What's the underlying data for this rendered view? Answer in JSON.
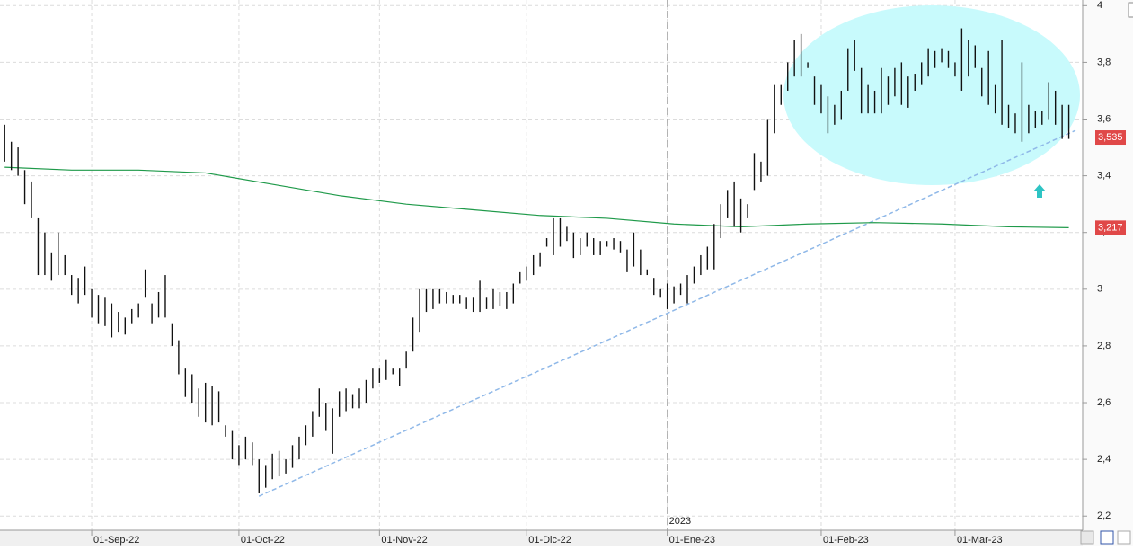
{
  "chart_data": {
    "type": "ohlc",
    "ylim": [
      2.15,
      4.02
    ],
    "yticks": [
      {
        "value": 2.2,
        "label": "2,2"
      },
      {
        "value": 2.4,
        "label": "2,4"
      },
      {
        "value": 2.6,
        "label": "2,6"
      },
      {
        "value": 2.8,
        "label": "2,8"
      },
      3,
      {
        "value": 3.2,
        "label": "3,2"
      },
      {
        "value": 3.4,
        "label": "3,4"
      },
      {
        "value": 3.6,
        "label": "3,6"
      },
      {
        "value": 3.8,
        "label": "3,8"
      },
      4
    ],
    "xlim": [
      -0.7,
      160.4
    ],
    "xticks": [
      {
        "value": 13,
        "label": "01-Sep-22"
      },
      {
        "value": 35,
        "label": "01-Oct-22"
      },
      {
        "value": 56,
        "label": "01-Nov-22"
      },
      {
        "value": 78,
        "label": "01-Dic-22"
      },
      {
        "value": 99,
        "label": "01-Ene-23"
      },
      {
        "value": 122,
        "label": "01-Feb-23"
      },
      {
        "value": 142,
        "label": "01-Mar-23"
      }
    ],
    "year_marker": {
      "value": 99,
      "label": "2023"
    },
    "grid": true,
    "color": "#111111",
    "low": [
      3.45,
      3.42,
      3.4,
      3.3,
      3.25,
      3.05,
      3.05,
      3.03,
      3.05,
      3.05,
      2.98,
      2.95,
      2.98,
      2.9,
      2.88,
      2.87,
      2.83,
      2.85,
      2.84,
      2.88,
      2.9,
      2.97,
      2.88,
      2.9,
      2.9,
      2.8,
      2.7,
      2.62,
      2.6,
      2.55,
      2.53,
      2.52,
      2.53,
      2.48,
      2.4,
      2.38,
      2.4,
      2.38,
      2.28,
      2.3,
      2.33,
      2.34,
      2.35,
      2.37,
      2.4,
      2.45,
      2.48,
      2.55,
      2.5,
      2.42,
      2.55,
      2.57,
      2.58,
      2.58,
      2.6,
      2.65,
      2.67,
      2.68,
      2.7,
      2.66,
      2.72,
      2.78,
      2.85,
      2.92,
      2.93,
      2.95,
      2.95,
      2.95,
      2.95,
      2.93,
      2.92,
      2.92,
      2.93,
      2.93,
      2.94,
      2.93,
      2.95,
      3.02,
      3.03,
      3.05,
      3.08,
      3.15,
      3.12,
      3.15,
      3.17,
      3.11,
      3.12,
      3.15,
      3.12,
      3.12,
      3.15,
      3.14,
      3.13,
      3.06,
      3.08,
      3.05,
      3.05,
      2.98,
      2.97,
      2.93,
      2.95,
      2.98,
      2.95,
      3.02,
      3.05,
      3.07,
      3.07,
      3.18,
      3.25,
      3.22,
      3.2,
      3.25,
      3.35,
      3.38,
      3.4,
      3.55,
      3.65,
      3.7,
      3.75,
      3.75,
      3.78,
      3.65,
      3.62,
      3.55,
      3.58,
      3.6,
      3.7,
      3.77,
      3.62,
      3.62,
      3.62,
      3.62,
      3.65,
      3.68,
      3.65,
      3.64,
      3.7,
      3.72,
      3.75,
      3.78,
      3.8,
      3.78,
      3.75,
      3.7,
      3.75,
      3.78,
      3.68,
      3.65,
      3.62,
      3.58,
      3.57,
      3.55,
      3.52,
      3.55,
      3.57,
      3.58,
      3.6,
      3.58,
      3.53,
      3.53
    ],
    "high": [
      3.58,
      3.52,
      3.5,
      3.42,
      3.38,
      3.25,
      3.2,
      3.13,
      3.2,
      3.12,
      3.05,
      3.04,
      3.08,
      3.0,
      2.98,
      2.97,
      2.95,
      2.92,
      2.9,
      2.93,
      2.95,
      3.07,
      2.95,
      2.99,
      3.05,
      2.88,
      2.82,
      2.72,
      2.7,
      2.65,
      2.67,
      2.66,
      2.64,
      2.52,
      2.5,
      2.45,
      2.48,
      2.46,
      2.4,
      2.38,
      2.42,
      2.43,
      2.4,
      2.45,
      2.48,
      2.52,
      2.57,
      2.65,
      2.6,
      2.58,
      2.64,
      2.65,
      2.63,
      2.65,
      2.68,
      2.72,
      2.72,
      2.75,
      2.72,
      2.72,
      2.78,
      2.9,
      3.0,
      3.0,
      3.0,
      3.0,
      2.99,
      2.98,
      2.98,
      2.97,
      2.97,
      3.03,
      2.97,
      3.0,
      2.99,
      2.99,
      3.02,
      3.06,
      3.08,
      3.12,
      3.13,
      3.18,
      3.25,
      3.25,
      3.22,
      3.2,
      3.18,
      3.2,
      3.18,
      3.17,
      3.17,
      3.18,
      3.17,
      3.14,
      3.2,
      3.14,
      3.07,
      3.04,
      3.0,
      3.02,
      3.01,
      3.02,
      3.05,
      3.08,
      3.12,
      3.15,
      3.23,
      3.3,
      3.35,
      3.38,
      3.32,
      3.3,
      3.48,
      3.45,
      3.6,
      3.72,
      3.72,
      3.8,
      3.88,
      3.9,
      3.8,
      3.75,
      3.72,
      3.68,
      3.65,
      3.7,
      3.85,
      3.88,
      3.78,
      3.72,
      3.7,
      3.78,
      3.75,
      3.78,
      3.8,
      3.75,
      3.76,
      3.8,
      3.85,
      3.84,
      3.85,
      3.84,
      3.8,
      3.92,
      3.88,
      3.86,
      3.78,
      3.84,
      3.72,
      3.88,
      3.65,
      3.62,
      3.8,
      3.65,
      3.63,
      3.63,
      3.73,
      3.7,
      3.65,
      3.65
    ],
    "ma": {
      "color": "#1f9a4a",
      "x": [
        0,
        10,
        20,
        30,
        40,
        50,
        60,
        70,
        80,
        90,
        100,
        110,
        120,
        130,
        140,
        150,
        159
      ],
      "values": [
        3.43,
        3.42,
        3.42,
        3.41,
        3.37,
        3.33,
        3.3,
        3.28,
        3.26,
        3.25,
        3.23,
        3.22,
        3.23,
        3.235,
        3.23,
        3.22,
        3.217
      ]
    },
    "trendline": {
      "color": "#8fb8e8",
      "x": [
        38,
        160
      ],
      "values": [
        2.27,
        3.56
      ]
    },
    "price_tags": [
      {
        "value": 3.535,
        "label": "3,535"
      },
      {
        "value": 3.217,
        "label": "3,217"
      }
    ],
    "tag_color": "#e04848"
  }
}
